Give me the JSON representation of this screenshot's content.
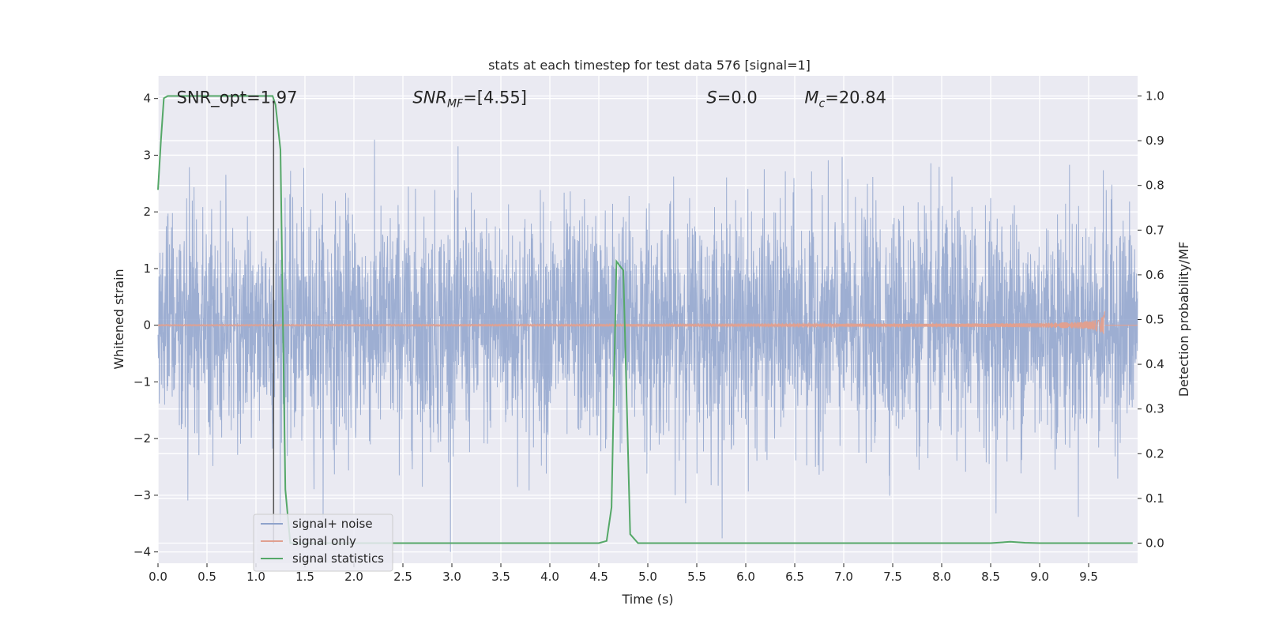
{
  "chart_data": {
    "type": "line",
    "title": "stats at each timestep for test data 576 [signal=1]",
    "xlabel": "Time (s)",
    "ylabel": "Whitened strain",
    "ylabel_right": "Detection probability/MF",
    "xlim": [
      0.0,
      10.0
    ],
    "ylim": [
      -4.2,
      4.4
    ],
    "ylim_right": [
      -0.045,
      1.045
    ],
    "x_ticks": [
      0.0,
      0.5,
      1.0,
      1.5,
      2.0,
      2.5,
      3.0,
      3.5,
      4.0,
      4.5,
      5.0,
      5.5,
      6.0,
      6.5,
      7.0,
      7.5,
      8.0,
      8.5,
      9.0,
      9.5
    ],
    "x_tick_labels": [
      "0.0",
      "0.5",
      "1.0",
      "1.5",
      "2.0",
      "2.5",
      "3.0",
      "3.5",
      "4.0",
      "4.5",
      "5.0",
      "5.5",
      "6.0",
      "6.5",
      "7.0",
      "7.5",
      "8.0",
      "8.5",
      "9.0",
      "9.5"
    ],
    "y_ticks": [
      -4,
      -3,
      -2,
      -1,
      0,
      1,
      2,
      3,
      4
    ],
    "y_tick_labels": [
      "−4",
      "−3",
      "−2",
      "−1",
      "0",
      "1",
      "2",
      "3",
      "4"
    ],
    "y_right_ticks": [
      0.0,
      0.1,
      0.2,
      0.3,
      0.4,
      0.5,
      0.6,
      0.7,
      0.8,
      0.9,
      1.0
    ],
    "y_right_tick_labels": [
      "0.0",
      "0.1",
      "0.2",
      "0.3",
      "0.4",
      "0.5",
      "0.6",
      "0.7",
      "0.8",
      "0.9",
      "1.0"
    ],
    "grid": true,
    "legend_position": "lower-left",
    "annotations": [
      {
        "name": "snr-opt",
        "text": "SNR_opt=1.97",
        "x": 0.19,
        "y": 4.0
      },
      {
        "name": "snr-mf",
        "base": "SNR",
        "sub": "MF",
        "rest": "=[4.55]",
        "x": 2.6,
        "y": 4.0
      },
      {
        "name": "s-value",
        "base": "S",
        "sub": "",
        "rest": "=0.0",
        "x": 5.6,
        "y": 4.0
      },
      {
        "name": "mc-value",
        "base": "M",
        "sub": "c",
        "rest": "=20.84",
        "x": 6.6,
        "y": 4.0
      }
    ],
    "vertical_marker_x": 1.18,
    "series": [
      {
        "name": "signal+ noise",
        "color": "#8fa3cc",
        "style": "noise",
        "duration": 10.0,
        "noise_sigma": 1.0,
        "envelope_abs_max": 4.0
      },
      {
        "name": "signal only",
        "color": "#e0a090",
        "style": "chirp",
        "merger_time": 9.67,
        "peak_amplitude": 0.45
      },
      {
        "name": "signal statistics",
        "color": "#55a868",
        "axis": "right",
        "x": [
          0.0,
          0.03,
          0.06,
          0.1,
          0.15,
          0.25,
          0.5,
          1.0,
          1.17,
          1.2,
          1.25,
          1.3,
          1.35,
          1.45,
          2.0,
          3.0,
          4.0,
          4.5,
          4.58,
          4.63,
          4.68,
          4.75,
          4.82,
          4.9,
          5.0,
          6.0,
          7.0,
          8.0,
          8.5,
          8.7,
          8.85,
          9.0,
          9.5,
          9.95
        ],
        "y": [
          0.79,
          0.9,
          0.995,
          1.0,
          1.0,
          1.0,
          1.0,
          1.0,
          1.0,
          0.98,
          0.88,
          0.12,
          0.0,
          0.0,
          0.0,
          0.0,
          0.0,
          0.0,
          0.005,
          0.08,
          0.63,
          0.61,
          0.02,
          0.0,
          0.0,
          0.0,
          0.0,
          0.0,
          0.0,
          0.003,
          0.001,
          0.0,
          0.0,
          0.0
        ]
      }
    ]
  }
}
